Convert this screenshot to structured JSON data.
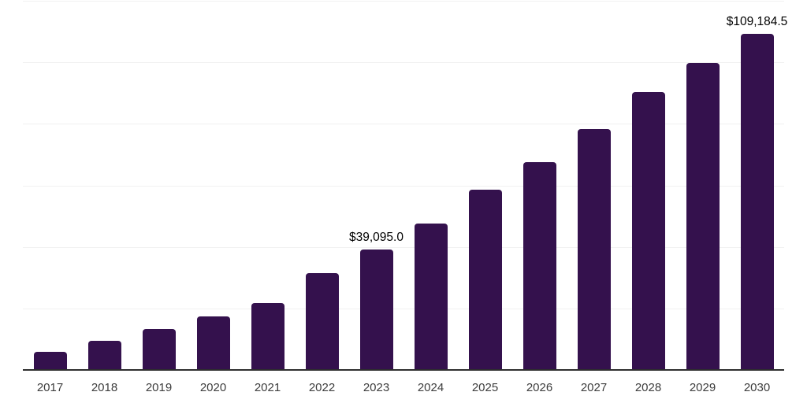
{
  "chart_data": {
    "type": "bar",
    "title": "",
    "xlabel": "",
    "ylabel": "",
    "categories": [
      "2017",
      "2018",
      "2019",
      "2020",
      "2021",
      "2022",
      "2023",
      "2024",
      "2025",
      "2026",
      "2027",
      "2028",
      "2029",
      "2030"
    ],
    "values": [
      5900,
      9350,
      13200,
      17400,
      21750,
      31500,
      39095.0,
      47700,
      58500,
      67600,
      78200,
      90200,
      99800,
      109184.5
    ],
    "data_labels": [
      "",
      "",
      "",
      "",
      "",
      "",
      "$39,095.0",
      "",
      "",
      "",
      "",
      "",
      "",
      "$109,184.5"
    ],
    "ylim": [
      0,
      120000
    ],
    "gridline_step": 20000,
    "grid": "horizontal-only",
    "y_tick_labels_shown": false,
    "legend": "none",
    "colors": {
      "bar": "#34114D",
      "axis_line": "#2e2e2e",
      "gridline": "#f1f1f1",
      "x_tick_label": "#3d3d3d",
      "data_label": "#000000",
      "background": "#ffffff"
    }
  }
}
